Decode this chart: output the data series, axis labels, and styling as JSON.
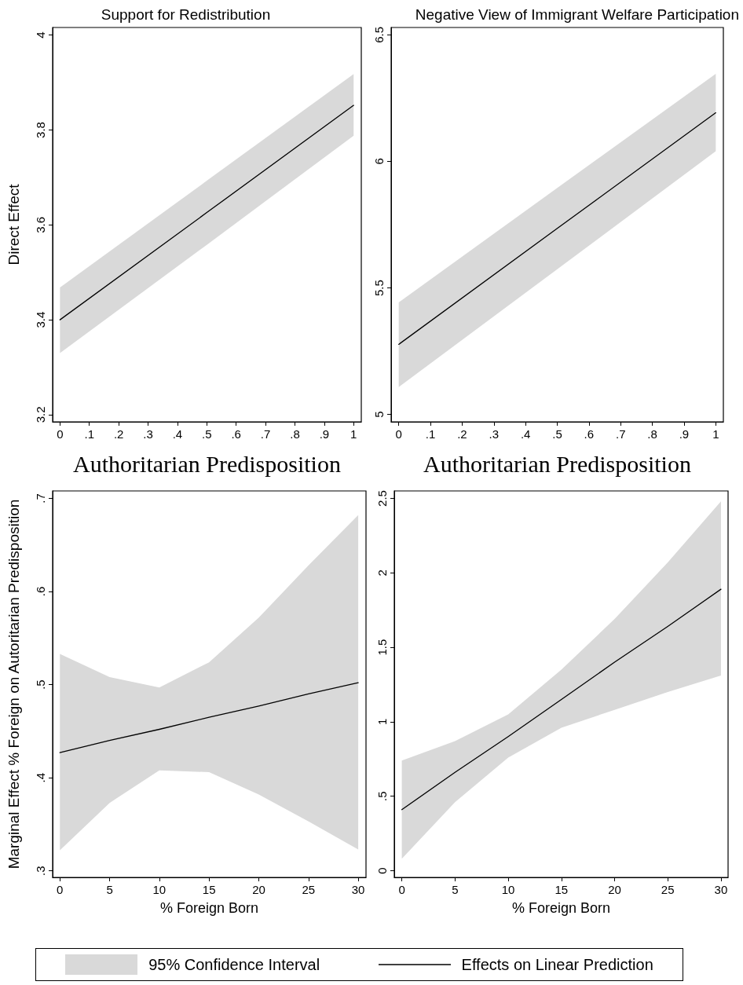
{
  "chart_data": [
    {
      "type": "line",
      "title": "Support for Redistribution",
      "xlabel": "Authoritarian Predisposition",
      "ylabel": "Direct Effect",
      "x": [
        0,
        0.5,
        1
      ],
      "xlim": [
        -0.025,
        1.026
      ],
      "xticks": [
        0,
        {
          "value": 0.1,
          "label": ".1"
        },
        {
          "value": 0.2,
          "label": ".2"
        },
        {
          "value": 0.3,
          "label": ".3"
        },
        {
          "value": 0.4,
          "label": ".4"
        },
        {
          "value": 0.5,
          "label": ".5"
        },
        {
          "value": 0.6,
          "label": ".6"
        },
        {
          "value": 0.7,
          "label": ".7"
        },
        {
          "value": 0.8,
          "label": ".8"
        },
        {
          "value": 0.9,
          "label": ".9"
        },
        1
      ],
      "ylim": [
        3.185,
        4.016
      ],
      "yticks": [
        3.2,
        3.4,
        3.6,
        3.8,
        4
      ],
      "grid": false,
      "series": [
        {
          "color": "#000000",
          "values": [
            3.4,
            3.626,
            3.852
          ],
          "lower": [
            3.33,
            3.558,
            3.788
          ],
          "upper": [
            3.468,
            3.693,
            3.918
          ]
        }
      ]
    },
    {
      "type": "line",
      "title": "Negative View of Immigrant Welfare Participation",
      "xlabel": "Authoritarian Predisposition",
      "x": [
        0,
        0.5,
        1
      ],
      "xlim": [
        -0.024,
        1.024
      ],
      "xticks": [
        0,
        {
          "value": 0.1,
          "label": ".1"
        },
        {
          "value": 0.2,
          "label": ".2"
        },
        {
          "value": 0.3,
          "label": ".3"
        },
        {
          "value": 0.4,
          "label": ".4"
        },
        {
          "value": 0.5,
          "label": ".5"
        },
        {
          "value": 0.6,
          "label": ".6"
        },
        {
          "value": 0.7,
          "label": ".7"
        },
        {
          "value": 0.8,
          "label": ".8"
        },
        {
          "value": 0.9,
          "label": ".9"
        },
        1
      ],
      "ylim": [
        4.971,
        6.529
      ],
      "yticks": [
        5,
        5.5,
        6,
        6.5
      ],
      "grid": false,
      "series": [
        {
          "color": "#000000",
          "values": [
            5.277,
            5.735,
            6.192
          ],
          "lower": [
            5.108,
            5.574,
            6.04
          ],
          "upper": [
            5.443,
            5.895,
            6.346
          ]
        }
      ]
    },
    {
      "type": "line",
      "xlabel": "% Foreign Born",
      "ylabel": "Marginal Effect % Foreign on Autoritarian Predisposition",
      "x": [
        0,
        5,
        10,
        15,
        20,
        25,
        30
      ],
      "xlim": [
        -0.73,
        30.78
      ],
      "xticks": [
        0,
        5,
        10,
        15,
        20,
        25,
        30
      ],
      "ylim": [
        0.293,
        0.708
      ],
      "yticks": [
        {
          "value": 0.3,
          "label": ".3"
        },
        {
          "value": 0.4,
          "label": ".4"
        },
        {
          "value": 0.5,
          "label": ".5"
        },
        {
          "value": 0.6,
          "label": ".6"
        },
        {
          "value": 0.7,
          "label": ".7"
        }
      ],
      "grid": false,
      "series": [
        {
          "color": "#000000",
          "values": [
            0.427,
            0.44,
            0.452,
            0.465,
            0.477,
            0.49,
            0.502
          ],
          "lower": [
            0.322,
            0.373,
            0.408,
            0.406,
            0.382,
            0.353,
            0.323
          ],
          "upper": [
            0.533,
            0.508,
            0.497,
            0.524,
            0.572,
            0.628,
            0.682
          ]
        }
      ]
    },
    {
      "type": "line",
      "xlabel": "% Foreign Born",
      "x": [
        0,
        5,
        10,
        15,
        20,
        25,
        30
      ],
      "xlim": [
        -0.71,
        30.67
      ],
      "xticks": [
        0,
        5,
        10,
        15,
        20,
        25,
        30
      ],
      "ylim": [
        -0.045,
        2.55
      ],
      "yticks": [
        0,
        {
          "value": 0.5,
          "label": ".5"
        },
        1,
        1.5,
        2,
        2.5
      ],
      "grid": false,
      "legend": "bottom",
      "annotations": [
        "95% Confidence Interval"
      ],
      "series": [
        {
          "name": "Effects on Linear Prediction",
          "color": "#000000",
          "values": [
            0.41,
            0.66,
            0.9,
            1.15,
            1.4,
            1.64,
            1.89
          ],
          "lower": [
            0.08,
            0.46,
            0.76,
            0.96,
            1.08,
            1.2,
            1.31
          ],
          "upper": [
            0.74,
            0.87,
            1.05,
            1.35,
            1.69,
            2.07,
            2.48
          ]
        }
      ]
    }
  ]
}
